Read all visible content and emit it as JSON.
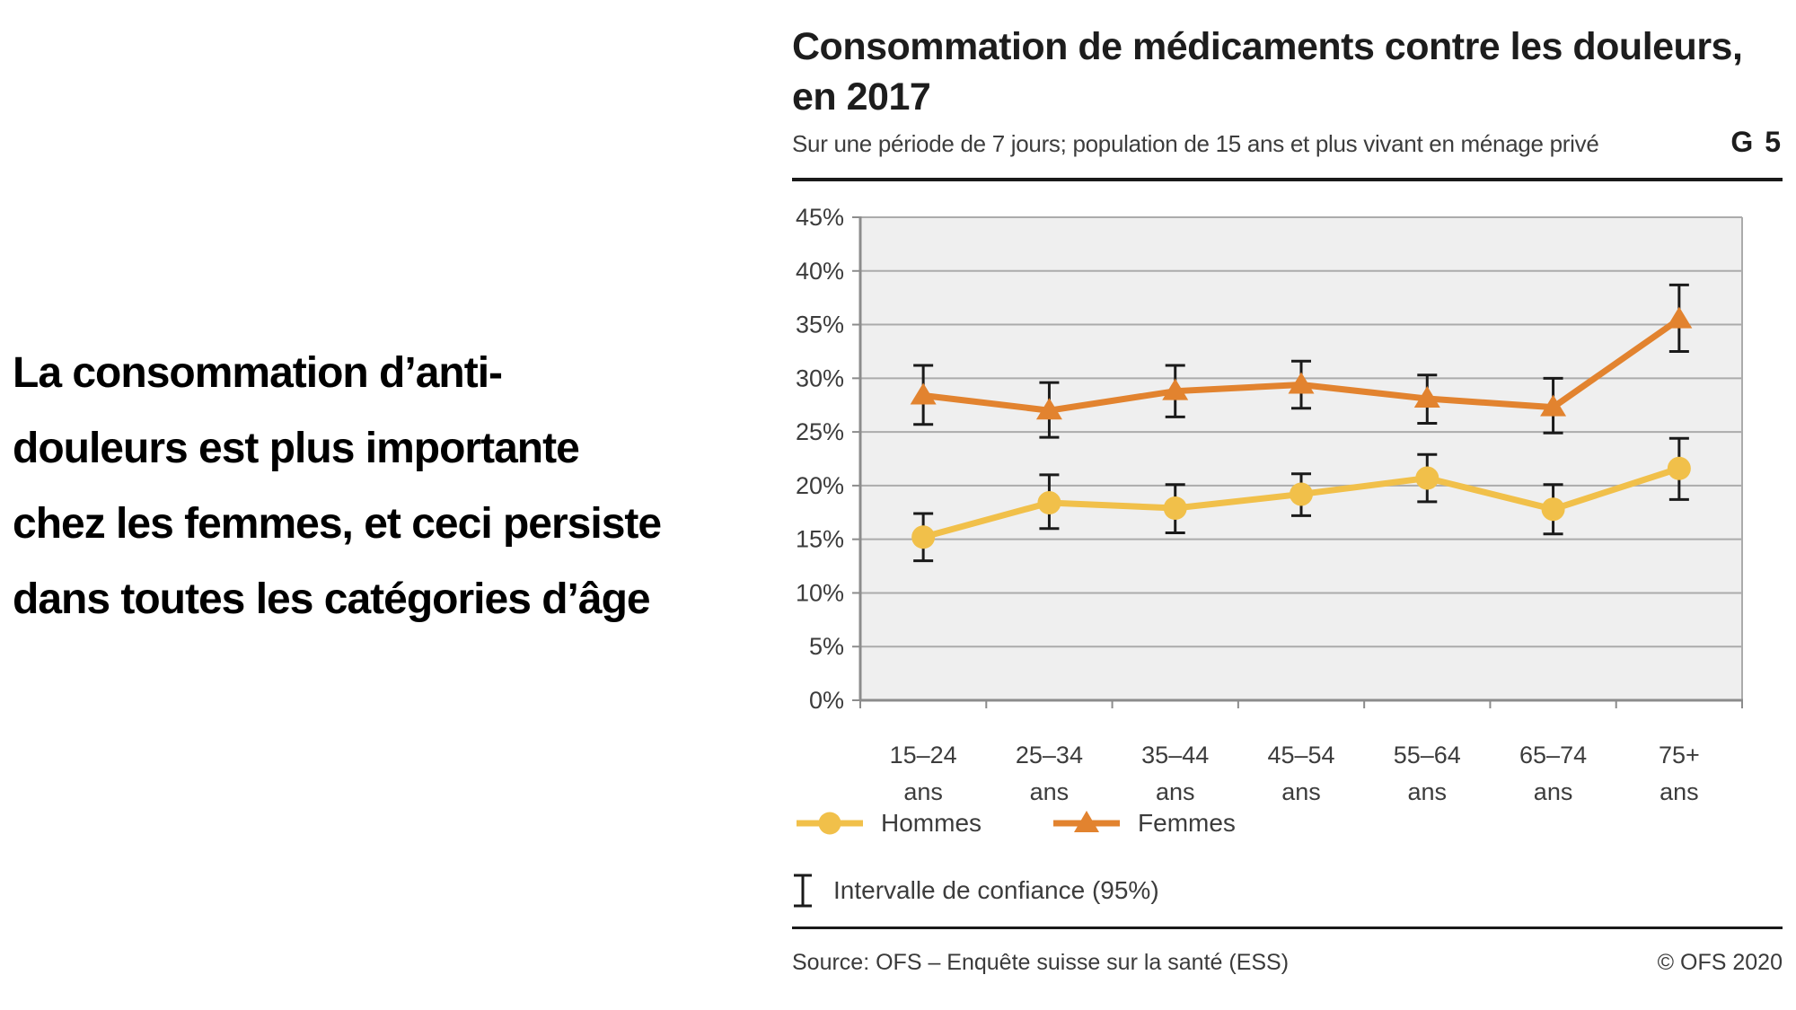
{
  "page": {
    "background": "#ffffff"
  },
  "left_text": {
    "lines": [
      "La consommation d’anti-",
      "douleurs est plus importante",
      "chez les femmes, et ceci persiste",
      "dans toutes les catégories d’âge"
    ]
  },
  "chart": {
    "title_lines": [
      "Consommation de médicaments contre les douleurs,",
      "en 2017"
    ],
    "subtitle": "Sur une période de 7 jours; population de 15 ans et plus vivant en ménage privé",
    "graph_id": "G 5",
    "ci_label": "Intervalle de confiance (95%)",
    "source": "Source: OFS – Enquête suisse sur la santé (ESS)",
    "copyright": "© OFS 2020"
  },
  "colors": {
    "hommes": "#f1c04a",
    "femmes": "#e2832f",
    "plot_bg": "#efefef",
    "grid": "#ababab",
    "axis": "#8c8c8c",
    "error_bar": "#1a1a1a",
    "label_text": "#3c3c3c"
  },
  "chart_data": {
    "type": "line",
    "title": "Consommation de médicaments contre les douleurs, en 2017",
    "categories": [
      "15–24",
      "25–34",
      "35–44",
      "45–54",
      "55–64",
      "65–74",
      "75+"
    ],
    "category_unit": "ans",
    "ylim": [
      0,
      45
    ],
    "ytick_step": 5,
    "ytick_suffix": "%",
    "grid": true,
    "legend_position": "bottom",
    "error_bars": "95% confidence interval",
    "series": [
      {
        "name": "Hommes",
        "marker": "circle",
        "color": "#f1c04a",
        "values": [
          15.2,
          18.4,
          17.9,
          19.2,
          20.7,
          17.8,
          21.6
        ],
        "ci_low": [
          13.0,
          16.0,
          15.6,
          17.2,
          18.5,
          15.5,
          18.7
        ],
        "ci_high": [
          17.4,
          21.0,
          20.1,
          21.1,
          22.9,
          20.1,
          24.4
        ]
      },
      {
        "name": "Femmes",
        "marker": "triangle",
        "color": "#e2832f",
        "values": [
          28.4,
          27.0,
          28.8,
          29.4,
          28.1,
          27.3,
          35.5
        ],
        "ci_low": [
          25.7,
          24.5,
          26.4,
          27.2,
          25.8,
          24.9,
          32.5
        ],
        "ci_high": [
          31.2,
          29.6,
          31.2,
          31.6,
          30.3,
          30.0,
          38.7
        ]
      }
    ]
  }
}
